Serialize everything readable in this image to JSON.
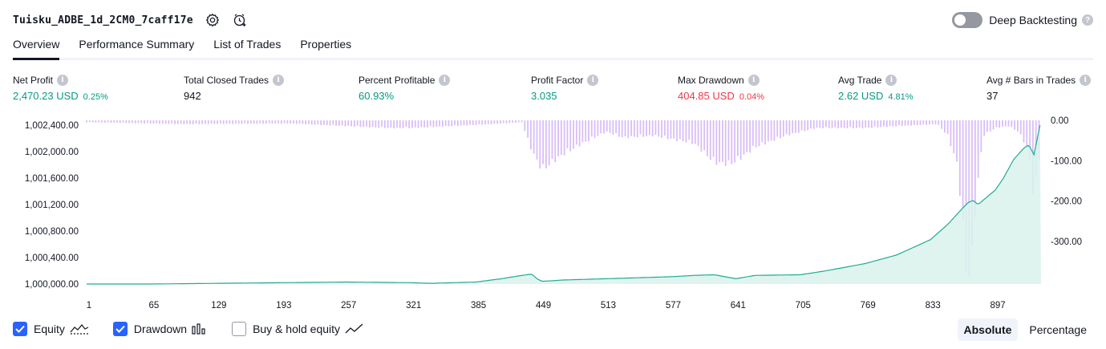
{
  "header": {
    "strategy_name": "Tuisku_ADBE_1d_2CM0_7caff17e",
    "settings_icon": "gear-icon",
    "alert_icon": "add-alert-clock-icon",
    "deep_backtesting_label": "Deep Backtesting",
    "deep_backtesting_enabled": false
  },
  "tabs": [
    {
      "label": "Overview",
      "active": true
    },
    {
      "label": "Performance Summary",
      "active": false
    },
    {
      "label": "List of Trades",
      "active": false
    },
    {
      "label": "Properties",
      "active": false
    }
  ],
  "metrics": [
    {
      "label": "Net Profit",
      "value": "2,470.23 USD",
      "pct": "0.25%",
      "color": "green"
    },
    {
      "label": "Total Closed Trades",
      "value": "942",
      "pct": "",
      "color": "dark"
    },
    {
      "label": "Percent Profitable",
      "value": "60.93%",
      "pct": "",
      "color": "green"
    },
    {
      "label": "Profit Factor",
      "value": "3.035",
      "pct": "",
      "color": "green"
    },
    {
      "label": "Max Drawdown",
      "value": "404.85 USD",
      "pct": "0.04%",
      "color": "red"
    },
    {
      "label": "Avg Trade",
      "value": "2.62 USD",
      "pct": "4.81%",
      "color": "green"
    },
    {
      "label": "Avg # Bars in Trades",
      "value": "37",
      "pct": "",
      "color": "dark"
    }
  ],
  "colors": {
    "equity_line": "#22ab94",
    "equity_fill": "#d9f2ec",
    "drawdown_bars": "#d5b6f5",
    "accent": "#2962ff",
    "positive": "#089981",
    "negative": "#f23645"
  },
  "chart_data": {
    "type": "area",
    "x_ticks": [
      "1",
      "65",
      "129",
      "193",
      "257",
      "321",
      "385",
      "449",
      "513",
      "577",
      "641",
      "705",
      "769",
      "833",
      "897"
    ],
    "x_range": [
      1,
      942
    ],
    "left_axis": {
      "ticks": [
        "1,002,400.00",
        "1,002,000.00",
        "1,001,600.00",
        "1,001,200.00",
        "1,000,800.00",
        "1,000,400.00",
        "1,000,000.00"
      ],
      "range": [
        1000000,
        1002470
      ]
    },
    "right_axis": {
      "ticks": [
        "0.00",
        "-100.00",
        "-200.00",
        "-300.00"
      ],
      "range": [
        -405,
        0
      ]
    },
    "series": [
      {
        "name": "Equity",
        "kind": "area",
        "axis": "left",
        "x": [
          1,
          65,
          129,
          193,
          257,
          321,
          340,
          385,
          410,
          430,
          440,
          445,
          450,
          470,
          513,
          577,
          600,
          620,
          641,
          660,
          705,
          730,
          769,
          800,
          833,
          850,
          862,
          870,
          875,
          880,
          897,
          905,
          915,
          925,
          930,
          935,
          942
        ],
        "y": [
          1000000,
          1000000,
          1000010,
          1000020,
          1000030,
          1000020,
          1000010,
          1000030,
          1000080,
          1000130,
          1000150,
          1000080,
          1000040,
          1000060,
          1000080,
          1000110,
          1000130,
          1000140,
          1000080,
          1000130,
          1000140,
          1000200,
          1000310,
          1000440,
          1000670,
          1000900,
          1001100,
          1001230,
          1001260,
          1001200,
          1001420,
          1001600,
          1001880,
          1002050,
          1002100,
          1001950,
          1002470
        ]
      },
      {
        "name": "Drawdown",
        "kind": "bar",
        "axis": "right",
        "x": [
          1,
          100,
          200,
          257,
          300,
          321,
          360,
          400,
          430,
          440,
          450,
          460,
          470,
          490,
          513,
          530,
          560,
          600,
          620,
          635,
          645,
          660,
          690,
          705,
          720,
          769,
          800,
          840,
          850,
          860,
          868,
          873,
          878,
          885,
          897,
          910,
          920,
          930,
          935,
          940,
          942
        ],
        "y": [
          -5,
          -10,
          -8,
          -15,
          -20,
          -20,
          -15,
          -10,
          -5,
          -80,
          -130,
          -110,
          -90,
          -60,
          -30,
          -45,
          -40,
          -60,
          -110,
          -115,
          -100,
          -70,
          -40,
          -30,
          -20,
          -20,
          -15,
          -10,
          -40,
          -120,
          -390,
          -405,
          -200,
          -40,
          -20,
          -15,
          -30,
          -80,
          -210,
          -100,
          0
        ]
      }
    ],
    "legend": {
      "items": [
        {
          "label": "Equity",
          "checked": true,
          "icon": "equity-line-icon"
        },
        {
          "label": "Drawdown",
          "checked": true,
          "icon": "drawdown-bars-icon"
        },
        {
          "label": "Buy & hold equity",
          "checked": false,
          "icon": "buy-hold-line-icon"
        }
      ]
    }
  },
  "mode": {
    "options": [
      "Absolute",
      "Percentage"
    ],
    "selected": "Absolute"
  }
}
